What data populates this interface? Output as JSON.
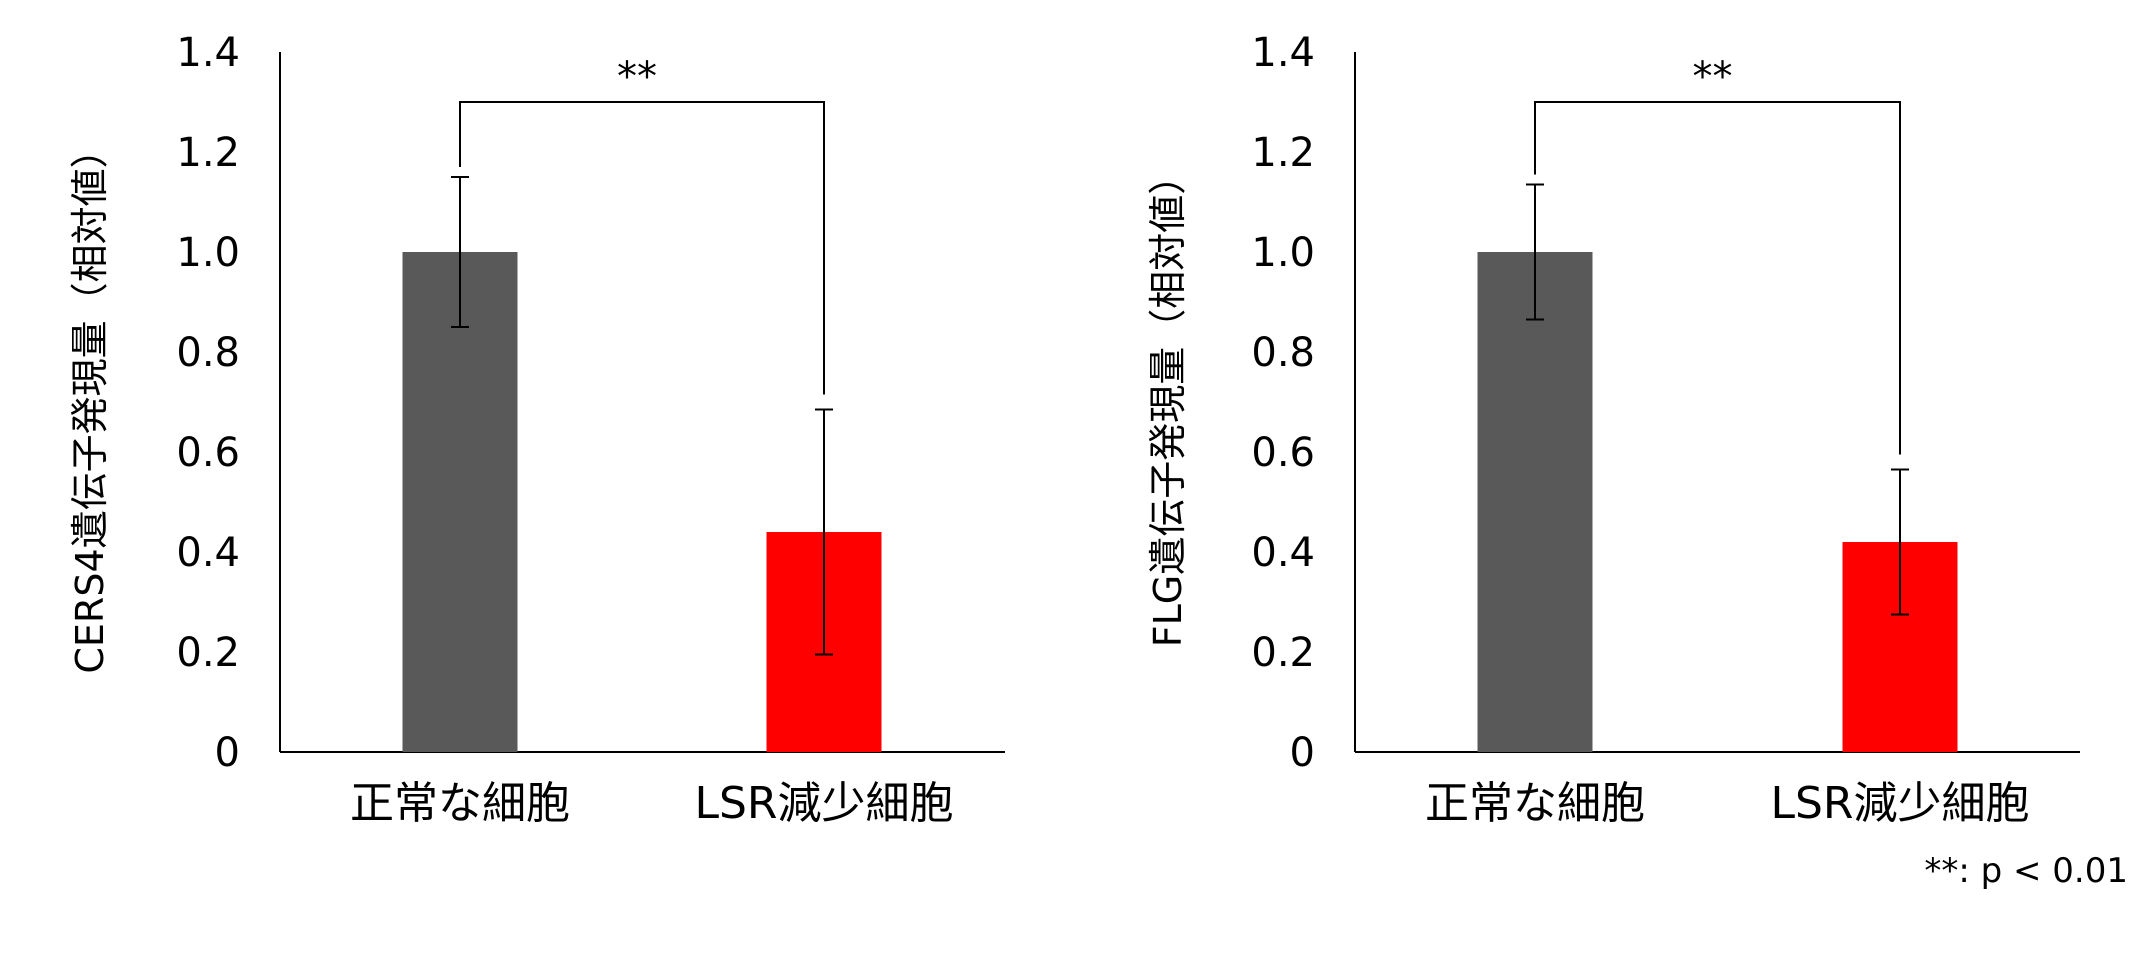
{
  "chart_data": [
    {
      "type": "bar",
      "title": "",
      "xlabel": "",
      "ylabel": "CERS4遺伝子発現量（相対値）",
      "ylim": [
        0,
        1.4
      ],
      "yticks": [
        "0",
        "0.2",
        "0.4",
        "0.6",
        "0.8",
        "1.0",
        "1.2",
        "1.4"
      ],
      "categories": [
        "正常な細胞",
        "LSR減少細胞"
      ],
      "values": [
        1.0,
        0.44
      ],
      "error": [
        0.15,
        0.245
      ],
      "colors": [
        "#595959",
        "#ff0000"
      ],
      "significance": {
        "label": "**",
        "between": [
          0,
          1
        ]
      },
      "grid": false,
      "legend": "none"
    },
    {
      "type": "bar",
      "title": "",
      "xlabel": "",
      "ylabel": "FLG遺伝子発現量（相対値）",
      "ylim": [
        0,
        1.4
      ],
      "yticks": [
        "0",
        "0.2",
        "0.4",
        "0.6",
        "0.8",
        "1.0",
        "1.2",
        "1.4"
      ],
      "categories": [
        "正常な細胞",
        "LSR減少細胞"
      ],
      "values": [
        1.0,
        0.42
      ],
      "error": [
        0.135,
        0.145
      ],
      "colors": [
        "#595959",
        "#ff0000"
      ],
      "significance": {
        "label": "**",
        "between": [
          0,
          1
        ]
      },
      "grid": false,
      "legend": "none"
    }
  ],
  "footnote": "**: p < 0.01"
}
